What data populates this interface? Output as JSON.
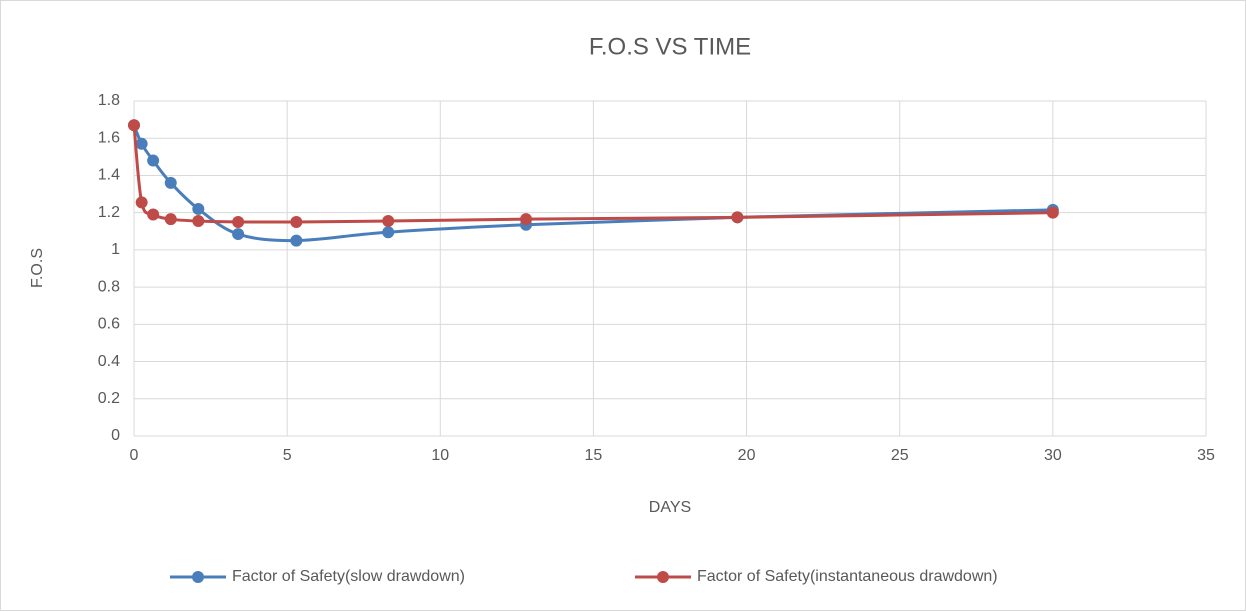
{
  "chart_data": {
    "type": "scatter",
    "title": "F.O.S VS TIME",
    "xlabel": "DAYS",
    "ylabel": "F.O.S",
    "smooth": true,
    "grid": true,
    "legend": "bottom",
    "xlim": [
      0,
      35
    ],
    "xticks": [
      0,
      5,
      10,
      15,
      20,
      25,
      30,
      35
    ],
    "ylim": [
      0,
      1.8
    ],
    "yticks": [
      0,
      0.2,
      0.4,
      0.6,
      0.8,
      1,
      1.2,
      1.4,
      1.6,
      1.8
    ],
    "series": [
      {
        "name": "Factor of Safety(slow drawdown)",
        "color": "#4a7ebb",
        "x": [
          0,
          0.25,
          0.625,
          1.2,
          2.1,
          3.4,
          5.3,
          8.3,
          12.8,
          19.7,
          30
        ],
        "values": [
          1.67,
          1.57,
          1.48,
          1.36,
          1.22,
          1.085,
          1.05,
          1.095,
          1.135,
          1.175,
          1.215
        ]
      },
      {
        "name": "Factor of Safety(instantaneous drawdown)",
        "color": "#be4b48",
        "x": [
          0,
          0.25,
          0.625,
          1.2,
          2.1,
          3.4,
          5.3,
          8.3,
          12.8,
          19.7,
          30
        ],
        "values": [
          1.67,
          1.255,
          1.19,
          1.165,
          1.155,
          1.15,
          1.15,
          1.155,
          1.165,
          1.175,
          1.2
        ]
      }
    ]
  }
}
